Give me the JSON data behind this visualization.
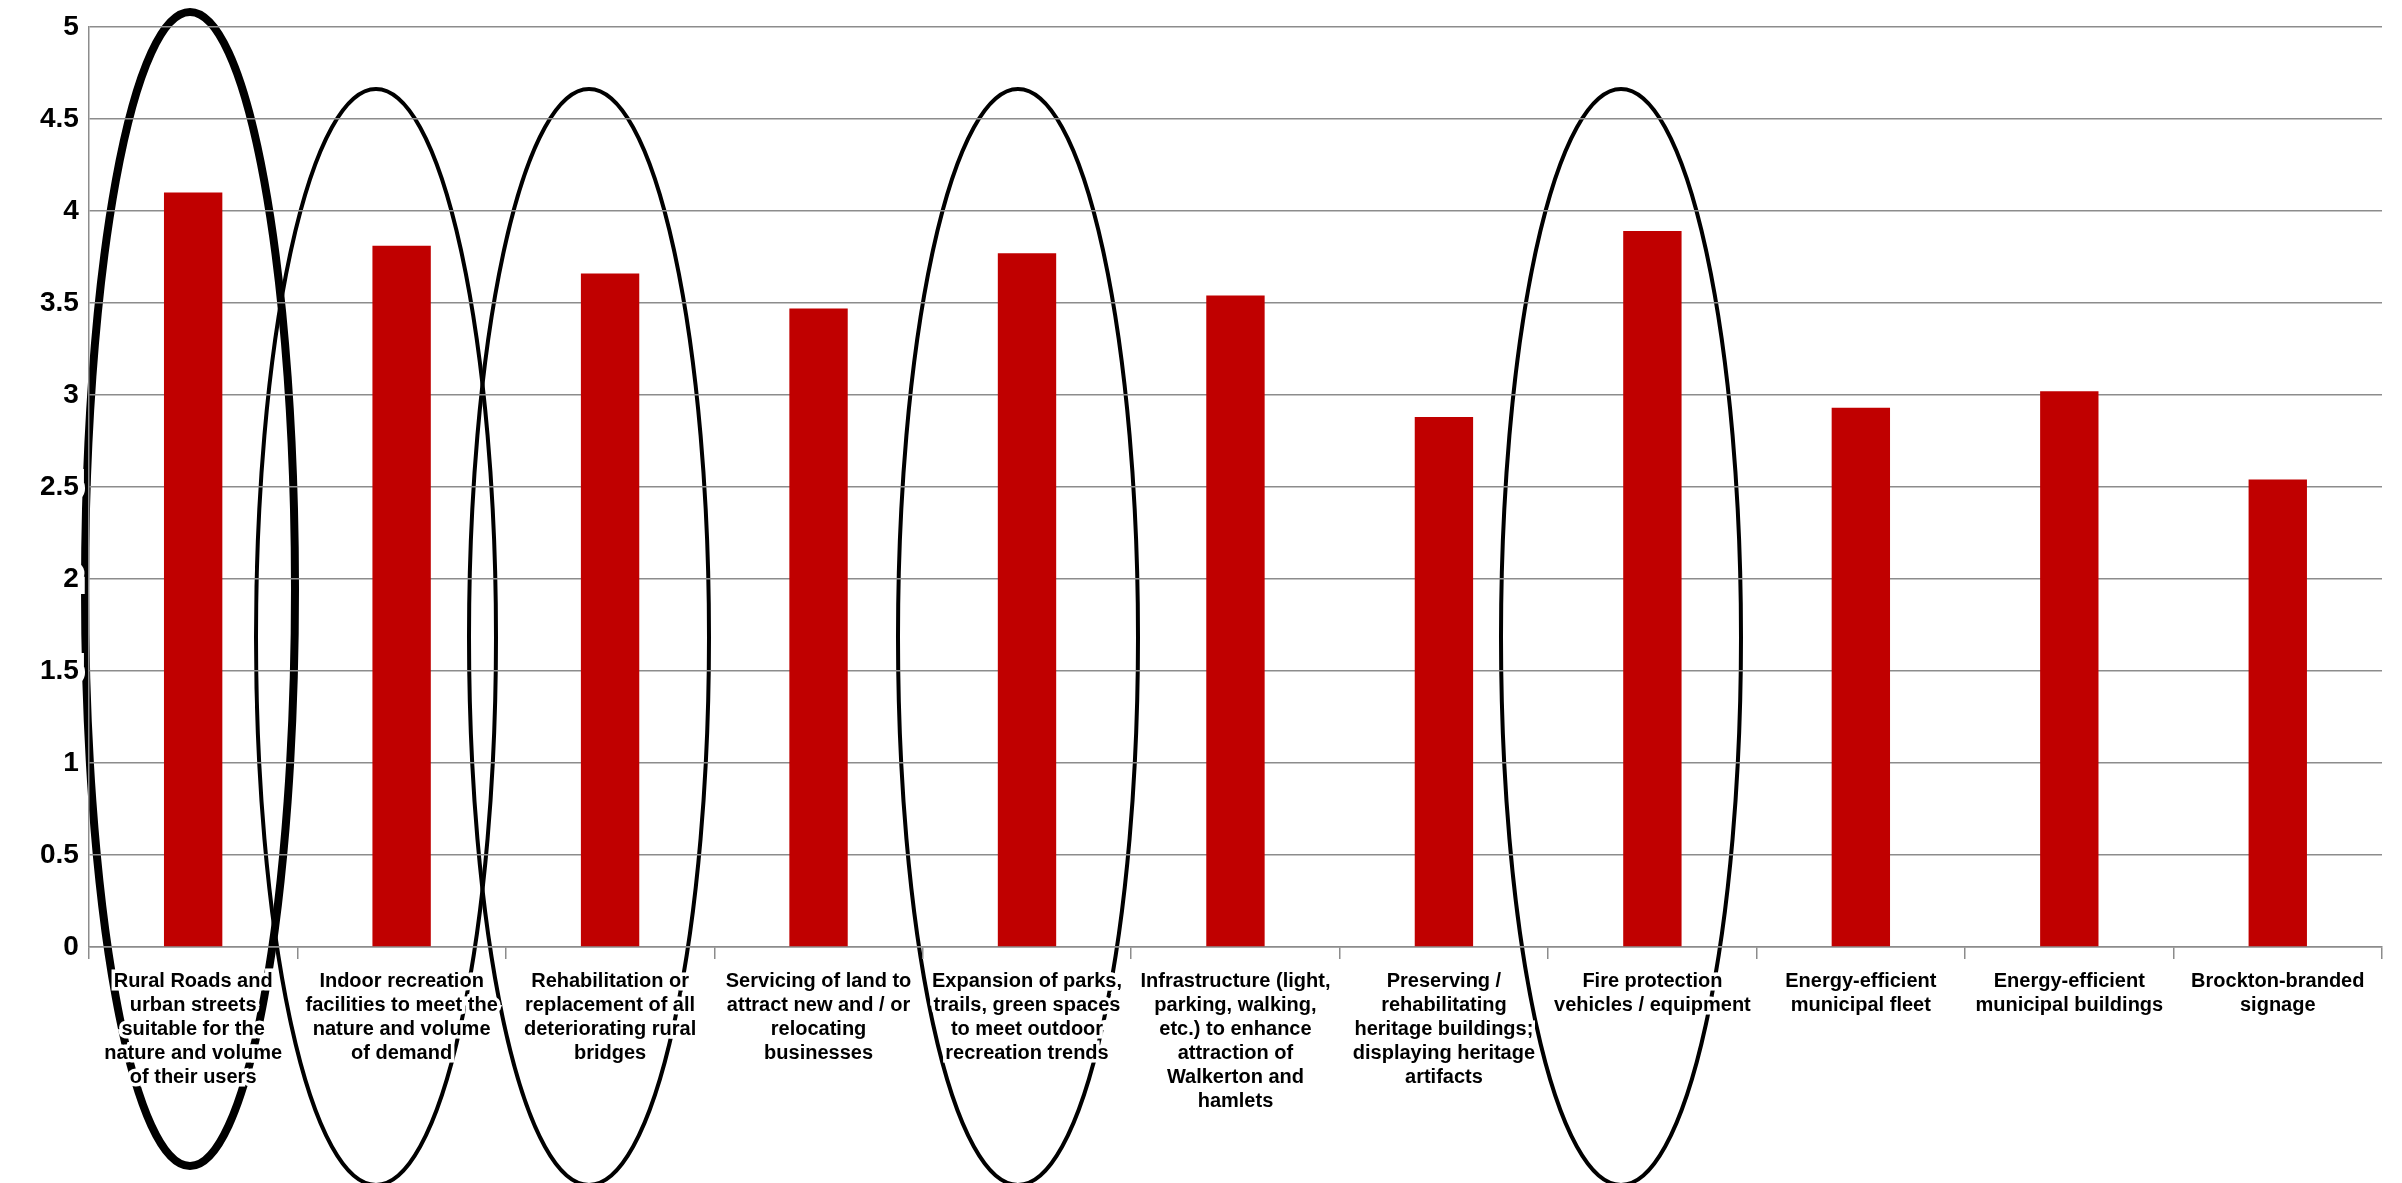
{
  "chart_data": {
    "type": "bar",
    "categories": [
      "Rural Roads and urban streets suitable for the nature and volume of their users",
      "Indoor recreation facilities to meet the nature and volume of demand",
      "Rehabilitation or replacement of all deteriorating rural bridges",
      "Servicing of land to attract new and / or relocating businesses",
      "Expansion of parks, trails, green spaces to meet outdoor recreation trends",
      "Infrastructure (light, parking, walking, etc.) to enhance attraction of Walkerton and hamlets",
      "Preserving / rehabilitating heritage buildings; displaying heritage artifacts",
      "Fire protection vehicles / equipment",
      "Energy-efficient municipal fleet",
      "Energy-efficient municipal buildings",
      "Brockton-branded signage"
    ],
    "values": [
      4.1,
      3.81,
      3.66,
      3.47,
      3.77,
      3.54,
      2.88,
      3.89,
      2.93,
      3.02,
      2.54
    ],
    "color": "#c00000",
    "ylim": [
      0,
      5
    ],
    "yticks": [
      0,
      0.5,
      1,
      1.5,
      2,
      2.5,
      3,
      3.5,
      4,
      4.5,
      5
    ],
    "grid": "y",
    "legend": false
  }
}
